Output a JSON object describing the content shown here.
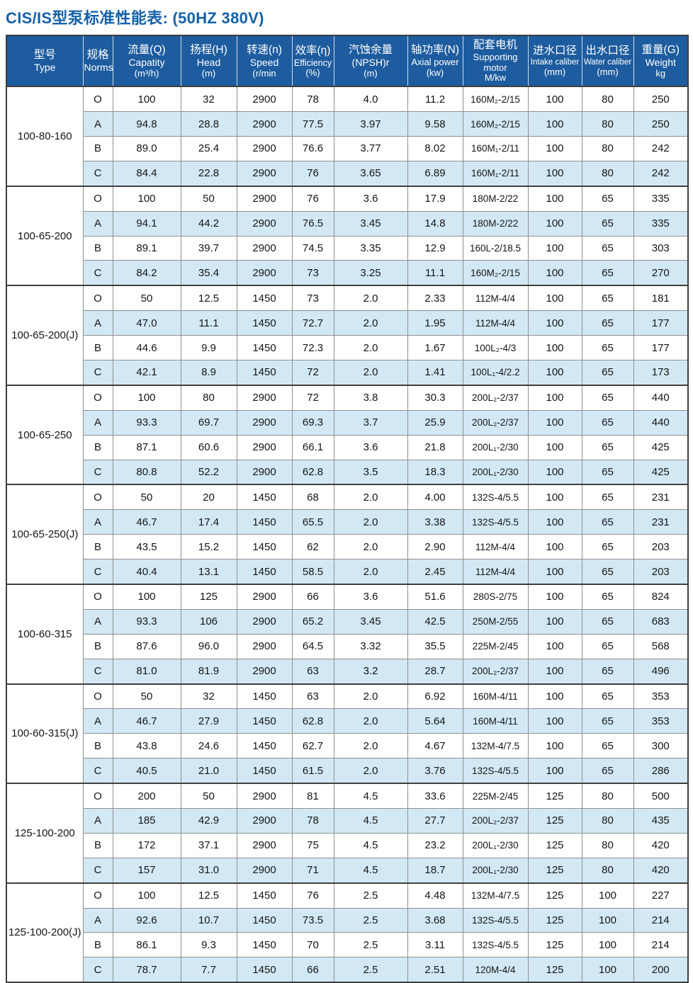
{
  "page": {
    "title": "CIS/IS型泵标准性能表: (50HZ  380V)"
  },
  "colors": {
    "title_blue": "#1561a9",
    "header_bg": "#1d5c9f",
    "row_alt_blue": "#d2e9f5",
    "grid_border": "#8f8f8f",
    "group_border": "#3f3f3f"
  },
  "table": {
    "columns": [
      {
        "zh": "型号",
        "en": "Type",
        "unit": ""
      },
      {
        "zh": "规格",
        "en": "Norms",
        "unit": ""
      },
      {
        "zh": "流量(Q)",
        "en": "Capatity",
        "unit": "(m³/h)"
      },
      {
        "zh": "扬程(H)",
        "en": "Head",
        "unit": "(m)"
      },
      {
        "zh": "转速(n)",
        "en": "Speed",
        "unit": "(r/min"
      },
      {
        "zh": "效率(η)",
        "en": "Efficiency",
        "unit": "(%)"
      },
      {
        "zh": "汽蚀余量",
        "en": "(NPSH)r",
        "unit": "(m)"
      },
      {
        "zh": "轴功率(N)",
        "en": "Axial power",
        "unit": "(kw)"
      },
      {
        "zh": "配套电机",
        "en": "Supporting motor",
        "unit": "M/kw"
      },
      {
        "zh": "进水口径",
        "en": "Intake caliber",
        "unit": "(mm)"
      },
      {
        "zh": "出水口径",
        "en": "Water caliber",
        "unit": "(mm)"
      },
      {
        "zh": "重量(G)",
        "en": "Weight",
        "unit": "kg"
      }
    ],
    "groups": [
      {
        "type": "100-80-160",
        "rows": [
          [
            "O",
            "100",
            "32",
            "2900",
            "78",
            "4.0",
            "11.2",
            "160M₂-2/15",
            "100",
            "80",
            "250"
          ],
          [
            "A",
            "94.8",
            "28.8",
            "2900",
            "77.5",
            "3.97",
            "9.58",
            "160M₂-2/15",
            "100",
            "80",
            "250"
          ],
          [
            "B",
            "89.0",
            "25.4",
            "2900",
            "76.6",
            "3.77",
            "8.02",
            "160M₁-2/11",
            "100",
            "80",
            "242"
          ],
          [
            "C",
            "84.4",
            "22.8",
            "2900",
            "76",
            "3.65",
            "6.89",
            "160M₁-2/11",
            "100",
            "80",
            "242"
          ]
        ]
      },
      {
        "type": "100-65-200",
        "rows": [
          [
            "O",
            "100",
            "50",
            "2900",
            "76",
            "3.6",
            "17.9",
            "180M-2/22",
            "100",
            "65",
            "335"
          ],
          [
            "A",
            "94.1",
            "44.2",
            "2900",
            "76.5",
            "3.45",
            "14.8",
            "180M-2/22",
            "100",
            "65",
            "335"
          ],
          [
            "B",
            "89.1",
            "39.7",
            "2900",
            "74.5",
            "3.35",
            "12.9",
            "160L-2/18.5",
            "100",
            "65",
            "303"
          ],
          [
            "C",
            "84.2",
            "35.4",
            "2900",
            "73",
            "3.25",
            "11.1",
            "160M₂-2/15",
            "100",
            "65",
            "270"
          ]
        ]
      },
      {
        "type": "100-65-200(J)",
        "rows": [
          [
            "O",
            "50",
            "12.5",
            "1450",
            "73",
            "2.0",
            "2.33",
            "112M-4/4",
            "100",
            "65",
            "181"
          ],
          [
            "A",
            "47.0",
            "11.1",
            "1450",
            "72.7",
            "2.0",
            "1.95",
            "112M-4/4",
            "100",
            "65",
            "177"
          ],
          [
            "B",
            "44.6",
            "9.9",
            "1450",
            "72.3",
            "2.0",
            "1.67",
            "100L₂-4/3",
            "100",
            "65",
            "177"
          ],
          [
            "C",
            "42.1",
            "8.9",
            "1450",
            "72",
            "2.0",
            "1.41",
            "100L₁-4/2.2",
            "100",
            "65",
            "173"
          ]
        ]
      },
      {
        "type": "100-65-250",
        "rows": [
          [
            "O",
            "100",
            "80",
            "2900",
            "72",
            "3.8",
            "30.3",
            "200L₂-2/37",
            "100",
            "65",
            "440"
          ],
          [
            "A",
            "93.3",
            "69.7",
            "2900",
            "69.3",
            "3.7",
            "25.9",
            "200L₂-2/37",
            "100",
            "65",
            "440"
          ],
          [
            "B",
            "87.1",
            "60.6",
            "2900",
            "66.1",
            "3.6",
            "21.8",
            "200L₁-2/30",
            "100",
            "65",
            "425"
          ],
          [
            "C",
            "80.8",
            "52.2",
            "2900",
            "62.8",
            "3.5",
            "18.3",
            "200L₁-2/30",
            "100",
            "65",
            "425"
          ]
        ]
      },
      {
        "type": "100-65-250(J)",
        "rows": [
          [
            "O",
            "50",
            "20",
            "1450",
            "68",
            "2.0",
            "4.00",
            "132S-4/5.5",
            "100",
            "65",
            "231"
          ],
          [
            "A",
            "46.7",
            "17.4",
            "1450",
            "65.5",
            "2.0",
            "3.38",
            "132S-4/5.5",
            "100",
            "65",
            "231"
          ],
          [
            "B",
            "43.5",
            "15.2",
            "1450",
            "62",
            "2.0",
            "2.90",
            "112M-4/4",
            "100",
            "65",
            "203"
          ],
          [
            "C",
            "40.4",
            "13.1",
            "1450",
            "58.5",
            "2.0",
            "2.45",
            "112M-4/4",
            "100",
            "65",
            "203"
          ]
        ]
      },
      {
        "type": "100-60-315",
        "rows": [
          [
            "O",
            "100",
            "125",
            "2900",
            "66",
            "3.6",
            "51.6",
            "280S-2/75",
            "100",
            "65",
            "824"
          ],
          [
            "A",
            "93.3",
            "106",
            "2900",
            "65.2",
            "3.45",
            "42.5",
            "250M-2/55",
            "100",
            "65",
            "683"
          ],
          [
            "B",
            "87.6",
            "96.0",
            "2900",
            "64.5",
            "3.32",
            "35.5",
            "225M-2/45",
            "100",
            "65",
            "568"
          ],
          [
            "C",
            "81.0",
            "81.9",
            "2900",
            "63",
            "3.2",
            "28.7",
            "200L₂-2/37",
            "100",
            "65",
            "496"
          ]
        ]
      },
      {
        "type": "100-60-315(J)",
        "rows": [
          [
            "O",
            "50",
            "32",
            "1450",
            "63",
            "2.0",
            "6.92",
            "160M-4/11",
            "100",
            "65",
            "353"
          ],
          [
            "A",
            "46.7",
            "27.9",
            "1450",
            "62.8",
            "2.0",
            "5.64",
            "160M-4/11",
            "100",
            "65",
            "353"
          ],
          [
            "B",
            "43.8",
            "24.6",
            "1450",
            "62.7",
            "2.0",
            "4.67",
            "132M-4/7.5",
            "100",
            "65",
            "300"
          ],
          [
            "C",
            "40.5",
            "21.0",
            "1450",
            "61.5",
            "2.0",
            "3.76",
            "132S-4/5.5",
            "100",
            "65",
            "286"
          ]
        ]
      },
      {
        "type": "125-100-200",
        "rows": [
          [
            "O",
            "200",
            "50",
            "2900",
            "81",
            "4.5",
            "33.6",
            "225M-2/45",
            "125",
            "80",
            "500"
          ],
          [
            "A",
            "185",
            "42.9",
            "2900",
            "78",
            "4.5",
            "27.7",
            "200L₂-2/37",
            "125",
            "80",
            "435"
          ],
          [
            "B",
            "172",
            "37.1",
            "2900",
            "75",
            "4.5",
            "23.2",
            "200L₁-2/30",
            "125",
            "80",
            "420"
          ],
          [
            "C",
            "157",
            "31.0",
            "2900",
            "71",
            "4.5",
            "18.7",
            "200L₁-2/30",
            "125",
            "80",
            "420"
          ]
        ]
      },
      {
        "type": "125-100-200(J)",
        "rows": [
          [
            "O",
            "100",
            "12.5",
            "1450",
            "76",
            "2.5",
            "4.48",
            "132M-4/7.5",
            "125",
            "100",
            "227"
          ],
          [
            "A",
            "92.6",
            "10.7",
            "1450",
            "73.5",
            "2.5",
            "3.68",
            "132S-4/5.5",
            "125",
            "100",
            "214"
          ],
          [
            "B",
            "86.1",
            "9.3",
            "1450",
            "70",
            "2.5",
            "3.11",
            "132S-4/5.5",
            "125",
            "100",
            "214"
          ],
          [
            "C",
            "78.7",
            "7.7",
            "1450",
            "66",
            "2.5",
            "2.51",
            "120M-4/4",
            "125",
            "100",
            "200"
          ]
        ]
      }
    ]
  }
}
